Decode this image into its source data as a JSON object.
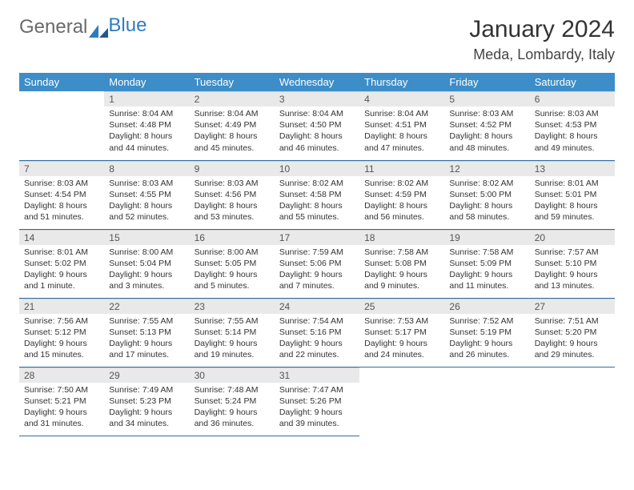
{
  "logo": {
    "text1": "General",
    "text2": "Blue"
  },
  "title": "January 2024",
  "location": "Meda, Lombardy, Italy",
  "colors": {
    "header_bg": "#3c8dc8",
    "header_text": "#ffffff",
    "daynum_bg": "#e9e9e9",
    "row_border": "#2f6da2",
    "logo_gray": "#6a6a6a",
    "logo_blue": "#2e7cc0"
  },
  "weekdays": [
    "Sunday",
    "Monday",
    "Tuesday",
    "Wednesday",
    "Thursday",
    "Friday",
    "Saturday"
  ],
  "leading_blanks": 1,
  "days": [
    {
      "n": "1",
      "sr": "8:04 AM",
      "ss": "4:48 PM",
      "dl": "8 hours and 44 minutes."
    },
    {
      "n": "2",
      "sr": "8:04 AM",
      "ss": "4:49 PM",
      "dl": "8 hours and 45 minutes."
    },
    {
      "n": "3",
      "sr": "8:04 AM",
      "ss": "4:50 PM",
      "dl": "8 hours and 46 minutes."
    },
    {
      "n": "4",
      "sr": "8:04 AM",
      "ss": "4:51 PM",
      "dl": "8 hours and 47 minutes."
    },
    {
      "n": "5",
      "sr": "8:03 AM",
      "ss": "4:52 PM",
      "dl": "8 hours and 48 minutes."
    },
    {
      "n": "6",
      "sr": "8:03 AM",
      "ss": "4:53 PM",
      "dl": "8 hours and 49 minutes."
    },
    {
      "n": "7",
      "sr": "8:03 AM",
      "ss": "4:54 PM",
      "dl": "8 hours and 51 minutes."
    },
    {
      "n": "8",
      "sr": "8:03 AM",
      "ss": "4:55 PM",
      "dl": "8 hours and 52 minutes."
    },
    {
      "n": "9",
      "sr": "8:03 AM",
      "ss": "4:56 PM",
      "dl": "8 hours and 53 minutes."
    },
    {
      "n": "10",
      "sr": "8:02 AM",
      "ss": "4:58 PM",
      "dl": "8 hours and 55 minutes."
    },
    {
      "n": "11",
      "sr": "8:02 AM",
      "ss": "4:59 PM",
      "dl": "8 hours and 56 minutes."
    },
    {
      "n": "12",
      "sr": "8:02 AM",
      "ss": "5:00 PM",
      "dl": "8 hours and 58 minutes."
    },
    {
      "n": "13",
      "sr": "8:01 AM",
      "ss": "5:01 PM",
      "dl": "8 hours and 59 minutes."
    },
    {
      "n": "14",
      "sr": "8:01 AM",
      "ss": "5:02 PM",
      "dl": "9 hours and 1 minute."
    },
    {
      "n": "15",
      "sr": "8:00 AM",
      "ss": "5:04 PM",
      "dl": "9 hours and 3 minutes."
    },
    {
      "n": "16",
      "sr": "8:00 AM",
      "ss": "5:05 PM",
      "dl": "9 hours and 5 minutes."
    },
    {
      "n": "17",
      "sr": "7:59 AM",
      "ss": "5:06 PM",
      "dl": "9 hours and 7 minutes."
    },
    {
      "n": "18",
      "sr": "7:58 AM",
      "ss": "5:08 PM",
      "dl": "9 hours and 9 minutes."
    },
    {
      "n": "19",
      "sr": "7:58 AM",
      "ss": "5:09 PM",
      "dl": "9 hours and 11 minutes."
    },
    {
      "n": "20",
      "sr": "7:57 AM",
      "ss": "5:10 PM",
      "dl": "9 hours and 13 minutes."
    },
    {
      "n": "21",
      "sr": "7:56 AM",
      "ss": "5:12 PM",
      "dl": "9 hours and 15 minutes."
    },
    {
      "n": "22",
      "sr": "7:55 AM",
      "ss": "5:13 PM",
      "dl": "9 hours and 17 minutes."
    },
    {
      "n": "23",
      "sr": "7:55 AM",
      "ss": "5:14 PM",
      "dl": "9 hours and 19 minutes."
    },
    {
      "n": "24",
      "sr": "7:54 AM",
      "ss": "5:16 PM",
      "dl": "9 hours and 22 minutes."
    },
    {
      "n": "25",
      "sr": "7:53 AM",
      "ss": "5:17 PM",
      "dl": "9 hours and 24 minutes."
    },
    {
      "n": "26",
      "sr": "7:52 AM",
      "ss": "5:19 PM",
      "dl": "9 hours and 26 minutes."
    },
    {
      "n": "27",
      "sr": "7:51 AM",
      "ss": "5:20 PM",
      "dl": "9 hours and 29 minutes."
    },
    {
      "n": "28",
      "sr": "7:50 AM",
      "ss": "5:21 PM",
      "dl": "9 hours and 31 minutes."
    },
    {
      "n": "29",
      "sr": "7:49 AM",
      "ss": "5:23 PM",
      "dl": "9 hours and 34 minutes."
    },
    {
      "n": "30",
      "sr": "7:48 AM",
      "ss": "5:24 PM",
      "dl": "9 hours and 36 minutes."
    },
    {
      "n": "31",
      "sr": "7:47 AM",
      "ss": "5:26 PM",
      "dl": "9 hours and 39 minutes."
    }
  ],
  "labels": {
    "sunrise": "Sunrise:",
    "sunset": "Sunset:",
    "daylight": "Daylight:"
  }
}
